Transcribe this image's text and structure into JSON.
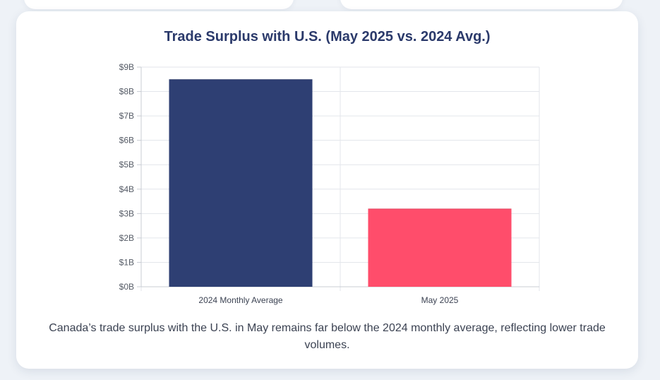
{
  "chart_data": {
    "type": "bar",
    "title": "Trade Surplus with U.S. (May 2025 vs. 2024 Avg.)",
    "categories": [
      "2024 Monthly Average",
      "May 2025"
    ],
    "values": [
      8.5,
      3.2
    ],
    "unit": "billion CAD",
    "ylim": [
      0,
      9
    ],
    "y_ticks": [
      0,
      1,
      2,
      3,
      4,
      5,
      6,
      7,
      8,
      9
    ],
    "y_tick_labels": [
      "$0B",
      "$1B",
      "$2B",
      "$3B",
      "$4B",
      "$5B",
      "$6B",
      "$7B",
      "$8B",
      "$9B"
    ],
    "xlabel": "",
    "ylabel": "",
    "bar_colors": [
      "#2e3f73",
      "#ff4d6b"
    ],
    "grid": true,
    "legend": "none"
  },
  "caption": "Canada’s trade surplus with the U.S. in May remains far below the 2024 monthly average, reflecting lower trade volumes."
}
